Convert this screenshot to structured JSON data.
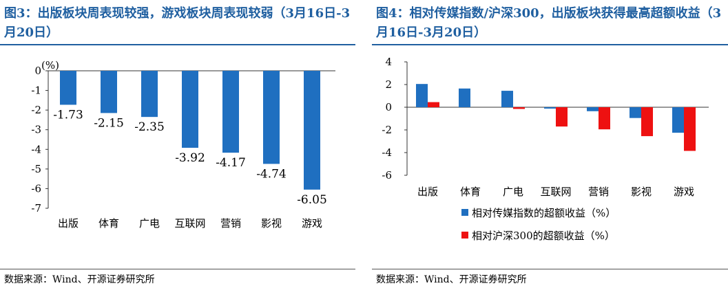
{
  "left": {
    "title": "图3：出版板块周表现较强，游戏板块周表现较弱（3月16日-3月20日）",
    "source": "数据来源：Wind、开源证券研究所",
    "chart_data": {
      "type": "bar",
      "unit_label": "(%)",
      "categories": [
        "出版",
        "体育",
        "广电",
        "互联网",
        "营销",
        "影视",
        "游戏"
      ],
      "values": [
        -1.73,
        -2.15,
        -2.35,
        -3.92,
        -4.17,
        -4.74,
        -6.05
      ],
      "value_labels": [
        "-1.73",
        "-2.15",
        "-2.35",
        "-3.92",
        "-4.17",
        "-4.74",
        "-6.05"
      ],
      "ylim": [
        -7,
        0
      ],
      "yticks": [
        0,
        -1,
        -2,
        -3,
        -4,
        -5,
        -6,
        -7
      ],
      "color": "#1f6fc0",
      "grid": false
    }
  },
  "right": {
    "title": "图4：相对传媒指数/沪深300，出版板块获得最高超额收益（3月16日-3月20日）",
    "source": "数据来源：Wind、开源证券研究所",
    "chart_data": {
      "type": "bar",
      "categories": [
        "出版",
        "体育",
        "广电",
        "互联网",
        "营销",
        "影视",
        "游戏"
      ],
      "series": [
        {
          "name": "相对传媒指数的超额收益（%）",
          "color": "#1f6fc0",
          "values": [
            2.05,
            1.65,
            1.45,
            -0.12,
            -0.35,
            -0.95,
            -2.25
          ]
        },
        {
          "name": "相对沪深300的超额收益（%）",
          "color": "#ee1111",
          "values": [
            0.45,
            0.0,
            -0.15,
            -1.7,
            -1.95,
            -2.55,
            -3.85
          ]
        }
      ],
      "ylim": [
        -6,
        4
      ],
      "yticks": [
        4,
        2,
        0,
        -2,
        -4,
        -6
      ],
      "legend_position": "bottom",
      "grid": false
    }
  }
}
